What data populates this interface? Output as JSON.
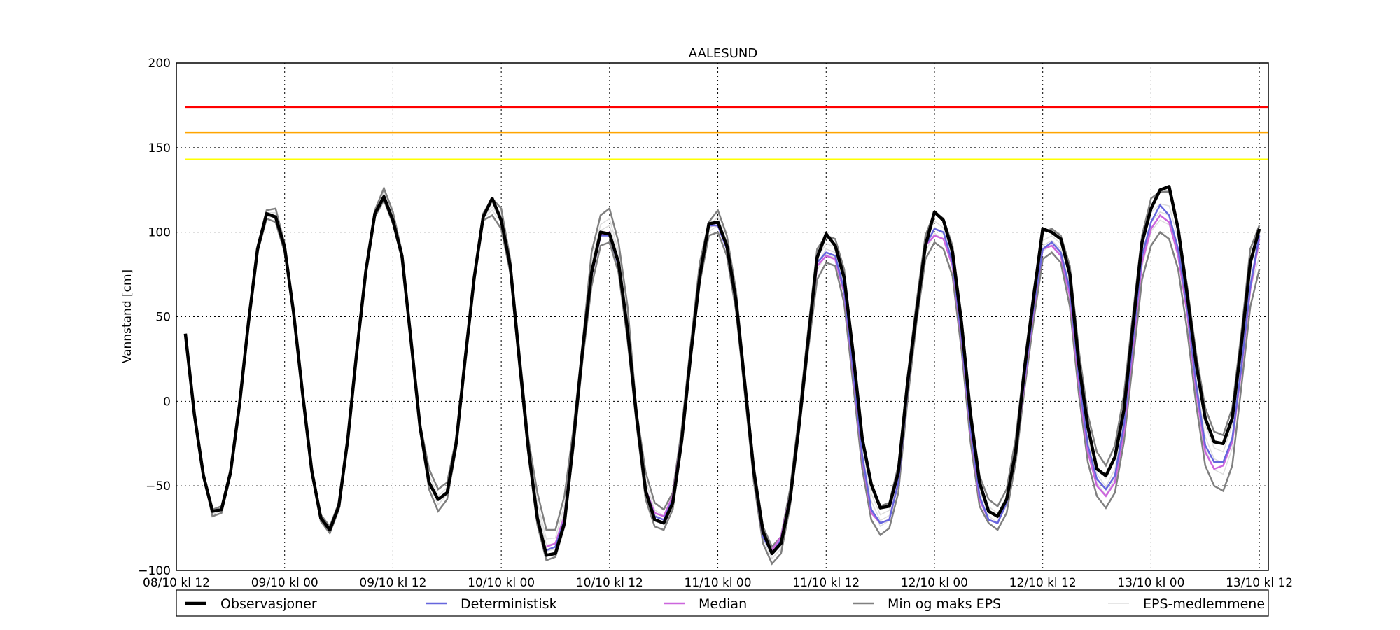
{
  "chart_data": {
    "type": "line",
    "title": "AALESUND",
    "xlabel": "",
    "ylabel": "Vannstand [cm]",
    "xlim": [
      "2013-10-08T12:00",
      "2013-10-13T13:00"
    ],
    "ylim": [
      -100,
      200
    ],
    "yticks": [
      -100,
      -50,
      0,
      50,
      100,
      150,
      200
    ],
    "xtick_labels": [
      "08/10 kl 12",
      "09/10 kl 00",
      "09/10 kl 12",
      "10/10 kl 00",
      "10/10 kl 12",
      "11/10 kl 00",
      "11/10 kl 12",
      "12/10 kl 00",
      "12/10 kl 12",
      "13/10 kl 00",
      "13/10 kl 12"
    ],
    "grid": true,
    "legend_position": "bottom",
    "thresholds": [
      {
        "value": 174,
        "color": "#ff0000"
      },
      {
        "value": 159,
        "color": "#ffa500"
      },
      {
        "value": 143,
        "color": "#ffff00"
      }
    ],
    "time_start": "08/10 kl 13",
    "time_step_hours": 1,
    "series": [
      {
        "name": "Observasjoner",
        "color": "#000000",
        "values": [
          40,
          -8,
          -44,
          -65,
          -64,
          -42,
          -2,
          47,
          90,
          111,
          109,
          91,
          52,
          4,
          -41,
          -69,
          -76,
          -62,
          -22,
          30,
          77,
          111,
          121,
          107,
          86,
          36,
          -15,
          -48,
          -58,
          -54,
          -25,
          25,
          73,
          109,
          120,
          107,
          80,
          25,
          -28,
          -69,
          -91,
          -90,
          -72,
          -23,
          30,
          76,
          100,
          99,
          82,
          42,
          -9,
          -53,
          -70,
          -72,
          -60,
          -23,
          28,
          74,
          105,
          106,
          92,
          60,
          10,
          -42,
          -77,
          -90,
          -84,
          -58,
          -14,
          36,
          85,
          99,
          92,
          73,
          28,
          -22,
          -49,
          -63,
          -62,
          -42,
          10,
          52,
          92,
          112,
          107,
          88,
          46,
          -8,
          -48,
          -65,
          -68,
          -58,
          -30,
          20,
          62,
          102,
          100,
          96,
          75,
          22,
          -15,
          -40,
          -44,
          -33,
          -5,
          45,
          94,
          114,
          125,
          127,
          102,
          63,
          22,
          -10,
          -24,
          -25,
          -10,
          33,
          82,
          102
        ]
      },
      {
        "name": "Deterministisk",
        "color": "#6666dd",
        "values": [
          null,
          null,
          null,
          null,
          null,
          null,
          null,
          null,
          null,
          null,
          null,
          null,
          null,
          null,
          null,
          null,
          null,
          null,
          null,
          null,
          null,
          null,
          null,
          null,
          null,
          null,
          null,
          null,
          null,
          null,
          null,
          null,
          null,
          null,
          null,
          null,
          null,
          null,
          null,
          null,
          -88,
          -86,
          -70,
          -22,
          30,
          74,
          98,
          98,
          80,
          40,
          -10,
          -52,
          -68,
          -70,
          -58,
          -20,
          30,
          74,
          104,
          104,
          90,
          58,
          8,
          -44,
          -80,
          -90,
          -82,
          -56,
          -12,
          36,
          82,
          88,
          86,
          66,
          18,
          -32,
          -64,
          -72,
          -70,
          -48,
          6,
          52,
          92,
          102,
          100,
          82,
          38,
          -16,
          -56,
          -70,
          -72,
          -60,
          -30,
          14,
          56,
          90,
          94,
          88,
          66,
          14,
          -26,
          -46,
          -52,
          -44,
          -14,
          36,
          86,
          106,
          116,
          110,
          90,
          56,
          10,
          -26,
          -36,
          -36,
          -22,
          20,
          68,
          98
        ]
      },
      {
        "name": "Median",
        "color": "#cc66dd",
        "values": [
          null,
          null,
          null,
          null,
          null,
          null,
          null,
          null,
          null,
          null,
          null,
          null,
          null,
          null,
          null,
          null,
          null,
          null,
          null,
          null,
          null,
          null,
          null,
          null,
          null,
          null,
          null,
          null,
          null,
          null,
          null,
          null,
          null,
          null,
          null,
          null,
          null,
          null,
          null,
          null,
          -86,
          -84,
          -68,
          -20,
          30,
          74,
          98,
          100,
          80,
          40,
          -10,
          -52,
          -66,
          -68,
          -56,
          -20,
          30,
          74,
          104,
          104,
          90,
          58,
          8,
          -44,
          -80,
          -88,
          -80,
          -56,
          -12,
          36,
          80,
          86,
          84,
          64,
          16,
          -34,
          -66,
          -72,
          -70,
          -48,
          6,
          52,
          92,
          98,
          96,
          80,
          36,
          -18,
          -58,
          -70,
          -72,
          -60,
          -30,
          12,
          54,
          90,
          92,
          86,
          62,
          10,
          -30,
          -50,
          -56,
          -48,
          -18,
          32,
          82,
          102,
          110,
          106,
          86,
          52,
          6,
          -30,
          -40,
          -38,
          -24,
          18,
          66,
          96
        ]
      },
      {
        "name": "Min og maks EPS",
        "color": "#808080",
        "min_values": [
          null,
          -8,
          -44,
          -68,
          -66,
          -44,
          -4,
          45,
          88,
          108,
          106,
          88,
          50,
          2,
          -43,
          -71,
          -78,
          -64,
          -24,
          28,
          75,
          109,
          119,
          105,
          84,
          34,
          -17,
          -52,
          -65,
          -58,
          -28,
          23,
          71,
          107,
          110,
          102,
          76,
          20,
          -32,
          -73,
          -94,
          -92,
          -74,
          -28,
          24,
          68,
          92,
          94,
          76,
          36,
          -14,
          -58,
          -74,
          -76,
          -64,
          -26,
          24,
          70,
          98,
          100,
          86,
          54,
          4,
          -48,
          -84,
          -96,
          -90,
          -62,
          -18,
          30,
          72,
          82,
          80,
          58,
          10,
          -40,
          -70,
          -79,
          -75,
          -54,
          0,
          46,
          84,
          94,
          90,
          74,
          30,
          -24,
          -62,
          -72,
          -76,
          -66,
          -36,
          8,
          48,
          84,
          88,
          82,
          56,
          4,
          -36,
          -56,
          -63,
          -54,
          -24,
          24,
          72,
          92,
          100,
          96,
          78,
          42,
          -2,
          -38,
          -50,
          -53,
          -38,
          8,
          56,
          78
        ],
        "max_values": [
          null,
          -6,
          -42,
          -64,
          -62,
          -40,
          0,
          49,
          92,
          113,
          114,
          93,
          54,
          6,
          -39,
          -67,
          -74,
          -60,
          -20,
          32,
          79,
          113,
          126,
          112,
          88,
          38,
          -13,
          -40,
          -52,
          -48,
          -22,
          28,
          75,
          111,
          120,
          114,
          84,
          30,
          -22,
          -54,
          -76,
          -76,
          -56,
          -16,
          34,
          88,
          110,
          114,
          94,
          56,
          -6,
          -42,
          -60,
          -64,
          -54,
          -16,
          34,
          82,
          106,
          113,
          98,
          66,
          14,
          -38,
          -74,
          -86,
          -80,
          -52,
          -8,
          42,
          90,
          98,
          96,
          78,
          30,
          -20,
          -48,
          -62,
          -60,
          -38,
          14,
          58,
          98,
          112,
          108,
          92,
          50,
          -4,
          -44,
          -58,
          -62,
          -52,
          -22,
          24,
          66,
          100,
          102,
          98,
          80,
          30,
          -8,
          -30,
          -38,
          -26,
          4,
          52,
          98,
          120,
          124,
          124,
          104,
          68,
          28,
          -4,
          -18,
          -20,
          -4,
          40,
          90,
          104
        ]
      }
    ],
    "legend": [
      {
        "label": "Observasjoner",
        "color": "#000000"
      },
      {
        "label": "Deterministisk",
        "color": "#6666dd"
      },
      {
        "label": "Median",
        "color": "#cc66dd"
      },
      {
        "label": "Min og maks EPS",
        "color": "#808080"
      },
      {
        "label": "EPS-medlemmene",
        "color": "#dddddd"
      }
    ]
  }
}
